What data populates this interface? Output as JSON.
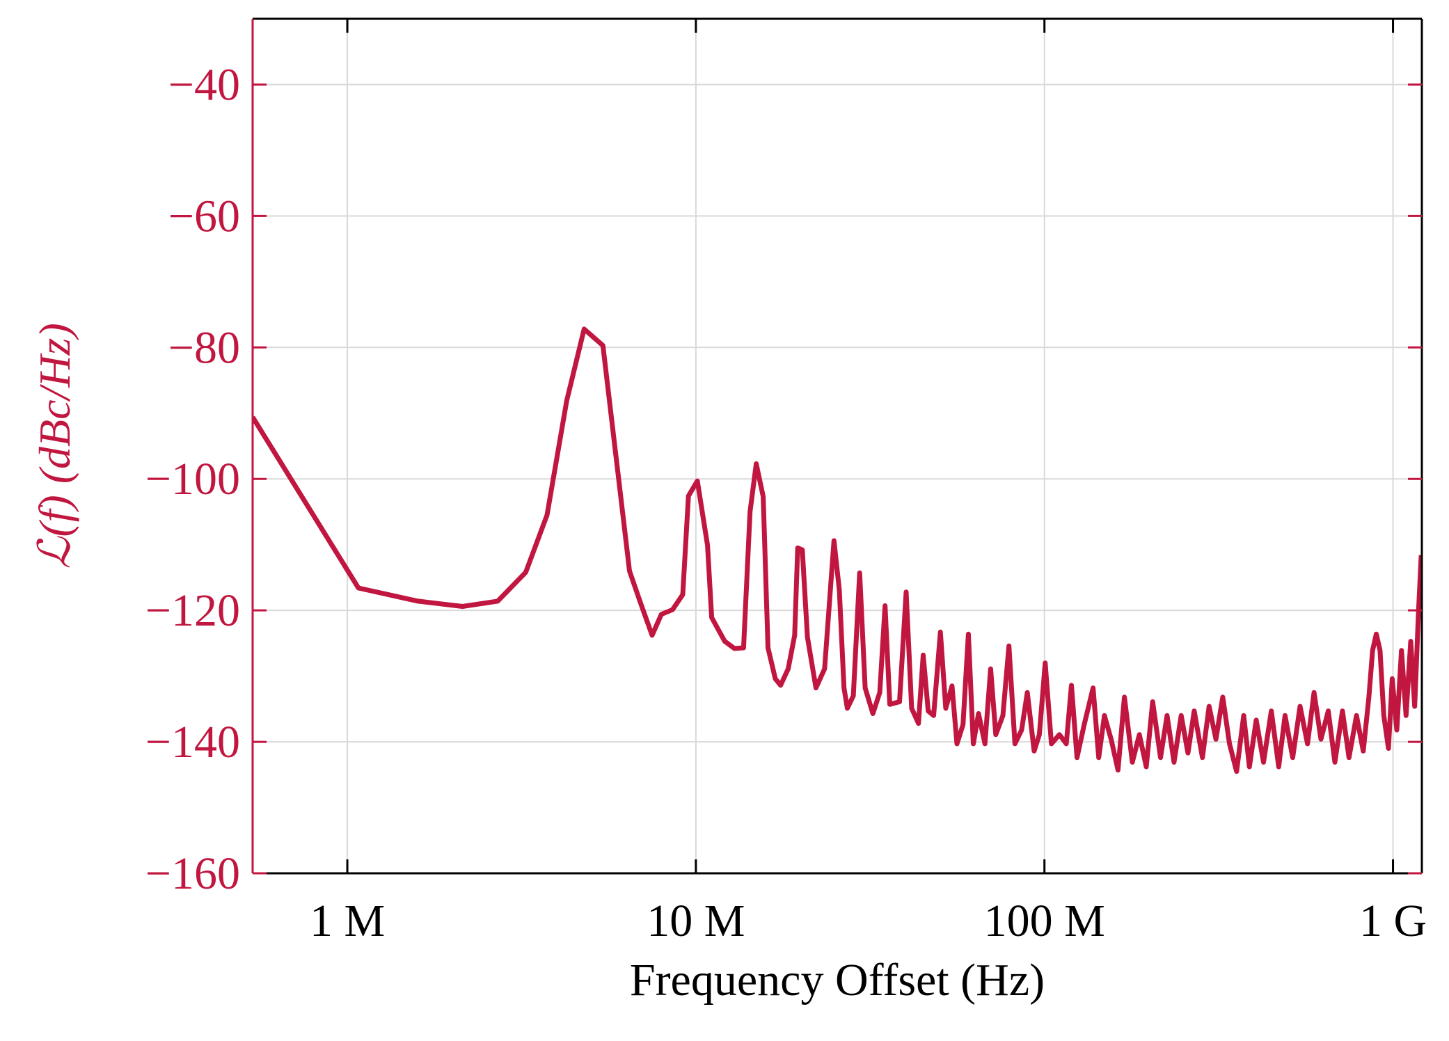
{
  "chart_data": {
    "type": "line",
    "x_label": "Frequency Offset (Hz)",
    "y_label": "ℒ(f) (dBc/Hz)",
    "xscale": "log",
    "grid": true,
    "xlim": [
      535000,
      1210000000
    ],
    "ylim": [
      -160,
      -30
    ],
    "xticks": [
      {
        "value": 1000000,
        "label": "1 M"
      },
      {
        "value": 10000000,
        "label": "10 M"
      },
      {
        "value": 100000000,
        "label": "100 M"
      },
      {
        "value": 1000000000,
        "label": "1 G"
      }
    ],
    "yticks": [
      {
        "value": -160,
        "label": "−160"
      },
      {
        "value": -140,
        "label": "−140"
      },
      {
        "value": -120,
        "label": "−120"
      },
      {
        "value": -100,
        "label": "−100"
      },
      {
        "value": -80,
        "label": "−80"
      },
      {
        "value": -60,
        "label": "−60"
      },
      {
        "value": -40,
        "label": "−40"
      }
    ],
    "x": [
      535000,
      1076000,
      1594000,
      2140000,
      2700000,
      3250000,
      3740000,
      4260000,
      4780000,
      5410000,
      6450000,
      6920000,
      7490000,
      7960000,
      8570000,
      9170000,
      9520000,
      10100000,
      10800000,
      11100000,
      12100000,
      12900000,
      13700000,
      14300000,
      14900000,
      15600000,
      16100000,
      16900000,
      17500000,
      18400000,
      19200000,
      19600000,
      20200000,
      20900000,
      22100000,
      23400000,
      24900000,
      25800000,
      26600000,
      27200000,
      28300000,
      29500000,
      30600000,
      32200000,
      33700000,
      34900000,
      36000000,
      38400000,
      40100000,
      41600000,
      43500000,
      44900000,
      46400000,
      48100000,
      50300000,
      52100000,
      54300000,
      56100000,
      58400000,
      60500000,
      62500000,
      64700000,
      67500000,
      70100000,
      72500000,
      76000000,
      79100000,
      82300000,
      86000000,
      89300000,
      93400000,
      96700000,
      100500000,
      104700000,
      110400000,
      115500000,
      119500000,
      124000000,
      130000000,
      137900000,
      143100000,
      148600000,
      155300000,
      162600000,
      169600000,
      178700000,
      187200000,
      195900000,
      204400000,
      215300000,
      224800000,
      235400000,
      246800000,
      258100000,
      269000000,
      284000000,
      296700000,
      310400000,
      324700000,
      339600000,
      355900000,
      372900000,
      387200000,
      405100000,
      425200000,
      447600000,
      470000000,
      490100000,
      515500000,
      541300000,
      568600000,
      593500000,
      621300000,
      651900000,
      681000000,
      716000000,
      747800000,
      785600000,
      821600000,
      852600000,
      873800000,
      895500000,
      918000000,
      941000000,
      970200000,
      994800000,
      1025600000,
      1057300000,
      1090000000,
      1124000000,
      1154000000,
      1183000000,
      1205000000
    ],
    "series": [
      {
        "color": "#c0163f",
        "values": [
          -90.6,
          -116.6,
          -118.6,
          -119.4,
          -118.6,
          -114.2,
          -105.5,
          -88.1,
          -77.2,
          -79.7,
          -114.0,
          -118.7,
          -123.8,
          -120.6,
          -119.9,
          -117.6,
          -102.6,
          -100.3,
          -110.1,
          -121.1,
          -124.7,
          -125.8,
          -125.7,
          -105.0,
          -97.7,
          -102.7,
          -125.7,
          -130.4,
          -131.4,
          -128.9,
          -123.8,
          -110.5,
          -110.8,
          -124.1,
          -131.8,
          -128.9,
          -109.4,
          -116.9,
          -131.8,
          -134.9,
          -133.0,
          -114.3,
          -131.8,
          -135.7,
          -132.5,
          -119.3,
          -134.3,
          -133.9,
          -117.2,
          -134.9,
          -137.2,
          -126.8,
          -135.3,
          -136.0,
          -123.3,
          -134.9,
          -131.5,
          -140.3,
          -137.4,
          -123.6,
          -140.3,
          -135.7,
          -140.3,
          -128.9,
          -138.9,
          -136.0,
          -125.4,
          -140.3,
          -138.2,
          -132.5,
          -141.4,
          -138.9,
          -128.0,
          -140.3,
          -138.9,
          -140.3,
          -131.4,
          -142.4,
          -137.4,
          -131.8,
          -142.4,
          -136.0,
          -139.6,
          -144.3,
          -133.2,
          -143.1,
          -138.9,
          -143.8,
          -133.9,
          -142.4,
          -136.0,
          -143.1,
          -136.0,
          -141.7,
          -135.3,
          -142.4,
          -134.6,
          -139.6,
          -133.2,
          -140.3,
          -144.5,
          -136.0,
          -143.8,
          -136.7,
          -143.1,
          -135.3,
          -143.8,
          -136.0,
          -142.4,
          -134.6,
          -140.3,
          -132.5,
          -139.6,
          -135.3,
          -143.1,
          -135.3,
          -142.4,
          -136.0,
          -141.4,
          -133.2,
          -126.1,
          -123.6,
          -126.1,
          -136.0,
          -141.0,
          -130.4,
          -138.2,
          -126.1,
          -136.0,
          -124.7,
          -134.6,
          -120.4,
          -111.6
        ]
      }
    ]
  }
}
